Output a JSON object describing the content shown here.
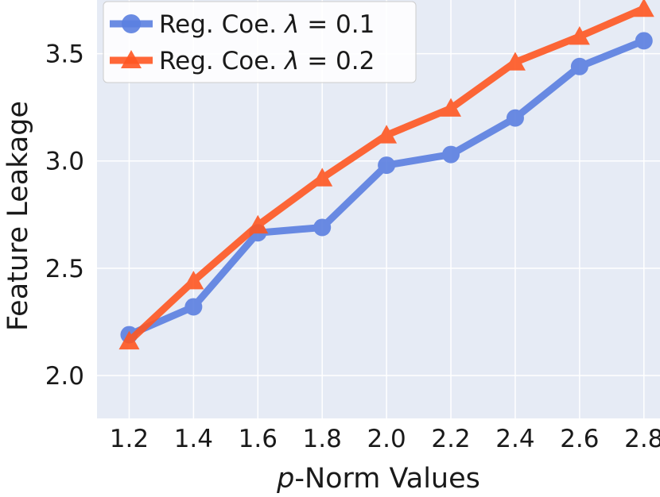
{
  "chart_data": {
    "type": "line",
    "title": "",
    "xlabel_prefix": "p",
    "xlabel_suffix": "-Norm Values",
    "ylabel": "Feature Leakage",
    "x": [
      1.2,
      1.4,
      1.6,
      1.8,
      2.0,
      2.2,
      2.4,
      2.6,
      2.8
    ],
    "x_tick_labels": [
      "1.2",
      "1.4",
      "1.6",
      "1.8",
      "2.0",
      "2.2",
      "2.4",
      "2.6",
      "2.8"
    ],
    "xlim": [
      1.1,
      2.85
    ],
    "ylim": [
      1.8,
      3.75
    ],
    "y_ticks": [
      2.0,
      2.5,
      3.0,
      3.5
    ],
    "y_tick_labels": [
      "2.0",
      "2.5",
      "3.0",
      "3.5"
    ],
    "grid": true,
    "legend_position": "top-left",
    "series": [
      {
        "name_prefix": "Reg. Coe. ",
        "name_symbol": "λ",
        "name_suffix": " = 0.1",
        "marker": "circle",
        "color": "#5b7fe0",
        "values": [
          2.19,
          2.32,
          2.665,
          2.69,
          2.98,
          3.03,
          3.2,
          3.44,
          3.56
        ]
      },
      {
        "name_prefix": "Reg. Coe. ",
        "name_symbol": "λ",
        "name_suffix": " = 0.2",
        "marker": "triangle",
        "color": "#ff5722",
        "values": [
          2.16,
          2.44,
          2.7,
          2.92,
          3.12,
          3.245,
          3.46,
          3.58,
          3.71
        ]
      }
    ]
  },
  "colors": {
    "plot_background": "#e6ebf5",
    "grid": "#ffffff"
  }
}
